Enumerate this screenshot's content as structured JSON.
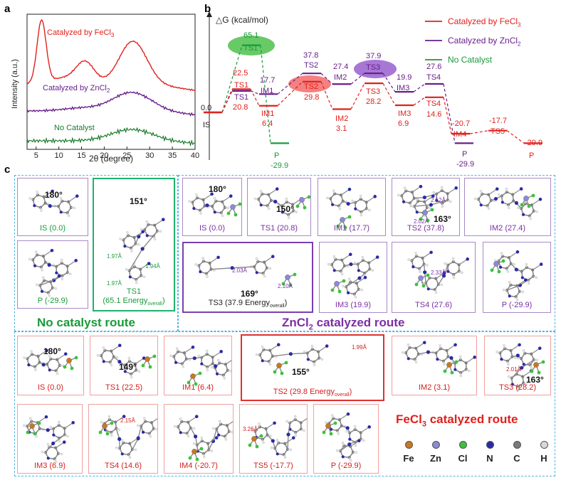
{
  "panel_a": {
    "letter": "a",
    "ylabel": "Intensity (a.u.)",
    "xlabel": "2θ (degree)",
    "ticks": [
      "5",
      "10",
      "15",
      "20",
      "25",
      "30",
      "35",
      "40"
    ],
    "labels": {
      "fecl3": "Catalyzed by FeCl",
      "zncl2": "Catalyzed by ZnCl",
      "none": "No Catalyst",
      "sub": "3",
      "sub2": "2"
    },
    "colors": {
      "fecl3": "#e0201c",
      "zncl2": "#6a1f8a",
      "none": "#1a7a2a"
    }
  },
  "panel_b": {
    "letter": "b",
    "ylabel": "△G (kcal/mol)",
    "legend": [
      {
        "text": "Catalyzed by FeCl",
        "sub": "3",
        "color": "#e0201c"
      },
      {
        "text": "Catalyzed by ZnCl",
        "sub": "2",
        "color": "#6a1f8a"
      },
      {
        "text": "No Catalyst",
        "sub": "",
        "color": "#1a9a3a"
      }
    ],
    "chart_data": {
      "type": "line",
      "title": "",
      "ylabel": "△G (kcal/mol)",
      "series": [
        {
          "name": "No Catalyst",
          "states": [
            "IS",
            "TS1",
            "P"
          ],
          "values": [
            0.0,
            65.1,
            -29.9
          ]
        },
        {
          "name": "Catalyzed by ZnCl2",
          "states": [
            "IS",
            "TS1",
            "IM1",
            "TS2",
            "IM2",
            "TS3",
            "IM3",
            "TS4",
            "P"
          ],
          "values": [
            0.0,
            20.8,
            17.7,
            37.8,
            27.4,
            37.9,
            19.9,
            27.6,
            -29.9
          ]
        },
        {
          "name": "Catalyzed by FeCl3",
          "states": [
            "IS",
            "TS1",
            "IM1",
            "TS2",
            "IM2",
            "TS3",
            "IM3",
            "TS4",
            "IM4",
            "TS5",
            "P"
          ],
          "values": [
            0.0,
            22.5,
            6.4,
            29.8,
            3.1,
            28.2,
            6.9,
            14.6,
            -20.7,
            -17.7,
            -29.9
          ]
        }
      ]
    },
    "level_labels": {
      "is_val": "0.0",
      "is_name": "IS",
      "nc_ts1_val": "65.1",
      "nc_ts1_name": "TS1",
      "nc_p_name": "P",
      "nc_p_val": "-29.9",
      "fe_ts1_val": "22.5",
      "fe_ts1_name": "TS1",
      "zn_ts1_name": "TS1",
      "zn_ts1_val": "20.8",
      "zn_im1_val": "17.7",
      "zn_im1_name": "IM1",
      "fe_im1_name": "IM1",
      "fe_im1_val": "6.4",
      "zn_ts2_val": "37.8",
      "zn_ts2_name": "TS2",
      "fe_ts2_name": "TS2",
      "fe_ts2_val": "29.8",
      "zn_im2_val": "27.4",
      "zn_im2_name": "IM2",
      "fe_im2_name": "IM2",
      "fe_im2_val": "3.1",
      "zn_ts3_val": "37.9",
      "zn_ts3_name": "TS3",
      "fe_ts3_name": "TS3",
      "fe_ts3_val": "28.2",
      "zn_im3_val": "19.9",
      "zn_im3_name": "IM3",
      "fe_im3_name": "IM3",
      "fe_im3_val": "6.9",
      "zn_ts4_val": "27.6",
      "zn_ts4_name": "TS4",
      "fe_ts4_name": "TS4",
      "fe_ts4_val": "14.6",
      "fe_im4_val": "-20.7",
      "fe_im4_name": "IM4",
      "fe_ts5_val": "-17.7",
      "fe_ts5_name": "TS5",
      "zn_p_name": "P",
      "zn_p_val": "-29.9",
      "fe_p_val": "-29.9",
      "fe_p_name": "P"
    }
  },
  "panel_c": {
    "letter": "c",
    "no_catalyst": {
      "title": "No catalyst route",
      "is_label": "IS (0.0)",
      "is_angle": "180°",
      "p_label": "P (-29.9)",
      "ts1_label": "TS1",
      "ts1_energy": "(65.1 Energy",
      "ts1_sub": "overall",
      "ts1_close": ")",
      "ts1_angle": "151°",
      "ts1_d1": "1.97Å",
      "ts1_d2": "1.94Å",
      "ts1_d3": "1.97Å"
    },
    "zncl2": {
      "title_pre": "ZnCl",
      "title_sub": "2",
      "title_post": " catalyzed route",
      "is_label": "IS (0.0)",
      "is_angle": "180°",
      "ts1_label": "TS1 (20.8)",
      "ts1_angle": "150°",
      "im1_label": "IM1 (17.7)",
      "ts2_label": "TS2 (37.8)",
      "ts2_angle": "163°",
      "ts2_d1": "2.12Å",
      "ts2_d2": "2.02Å",
      "im2_label": "IM2 (27.4)",
      "ts3_label": "TS3 (37.9 Energy",
      "ts3_sub": "overall",
      "ts3_close": ")",
      "ts3_angle": "169°",
      "ts3_d1": "2.03Å",
      "ts3_d2": "2.10Å",
      "im3_label": "IM3 (19.9)",
      "ts4_label": "TS4 (27.6)",
      "ts4_d1": "2.33Å",
      "p_label": "P (-29.9)"
    },
    "fecl3": {
      "title_pre": "FeCl",
      "title_sub": "3",
      "title_post": " catalyzed route",
      "is_label": "IS (0.0)",
      "is_angle": "180°",
      "ts1_label": "TS1 (22.5)",
      "ts1_angle": "149°",
      "im1_label": "IM1 (6.4)",
      "ts2_label": "TS2 (29.8 Energy",
      "ts2_sub": "overall",
      "ts2_close": ")",
      "ts2_angle": "155°",
      "ts2_d1": "1.99Å",
      "im2_label": "IM2 (3.1)",
      "ts3_label": "TS3 (28.2)",
      "ts3_angle": "163°",
      "ts3_d1": "2.01Å",
      "im3_label": "IM3 (6.9)",
      "ts4_label": "TS4 (14.6)",
      "ts4_d1": "2.15Å",
      "im4_label": "IM4 (-20.7)",
      "ts5_label": "TS5 (-17.7)",
      "ts5_d1": "3.26Å",
      "p_label": "P (-29.9)"
    },
    "atom_legend": [
      {
        "symbol": "Fe",
        "color": "#c8781e"
      },
      {
        "symbol": "Zn",
        "color": "#8a8ad8"
      },
      {
        "symbol": "Cl",
        "color": "#3cc23c"
      },
      {
        "symbol": "N",
        "color": "#2a2aa8"
      },
      {
        "symbol": "C",
        "color": "#7a7a7a"
      },
      {
        "symbol": "H",
        "color": "#d8d8d8"
      }
    ]
  }
}
